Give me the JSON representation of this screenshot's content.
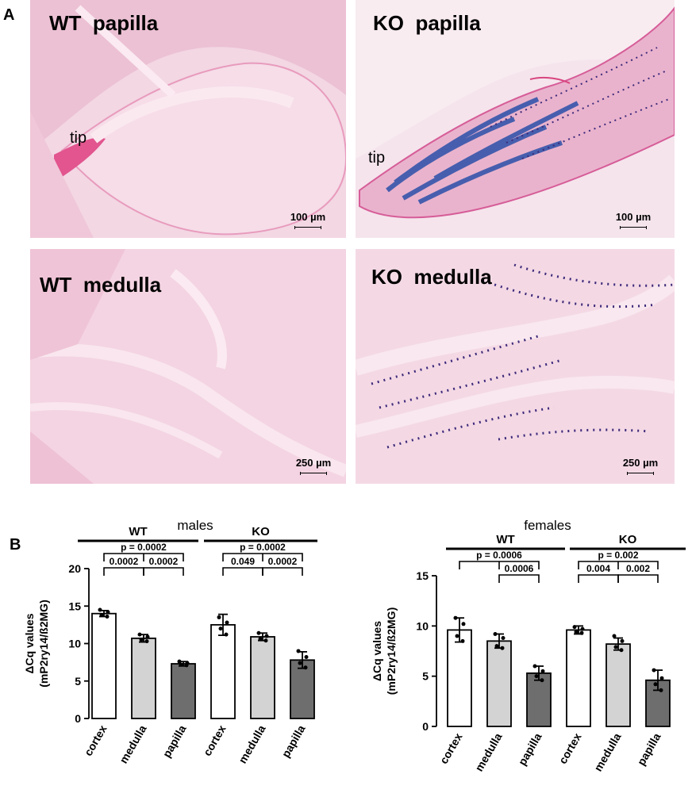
{
  "panel_a_label": "A",
  "panel_b_label": "B",
  "micrographs": [
    {
      "title": "WT  papilla",
      "tip": "tip",
      "scale": "100 µm",
      "stain": "none"
    },
    {
      "title": "KO  papilla",
      "tip": "tip",
      "scale": "100 µm",
      "stain": "blue"
    },
    {
      "title": "WT  medulla",
      "tip": "",
      "scale": "250 µm",
      "stain": "none"
    },
    {
      "title": "KO  medulla",
      "tip": "",
      "scale": "250 µm",
      "stain": "dots"
    }
  ],
  "colors": {
    "tissue": "#f5c6d8",
    "tissue_dark": "#e86fa3",
    "xgal_blue": "#2a4fa8",
    "dots": "#3d2a7a",
    "bar_cortex": "#ffffff",
    "bar_medulla": "#d3d3d3",
    "bar_papilla": "#6e6e6e"
  },
  "chart_data": [
    {
      "type": "bar",
      "title": "males",
      "ylabel": "ΔCq values\n(mP2ry14/ß2MG)",
      "ylim": [
        0,
        20
      ],
      "yticks": [
        0,
        5,
        10,
        15,
        20
      ],
      "groups": [
        {
          "name": "WT",
          "categories": [
            "cortex",
            "medulla",
            "papilla"
          ]
        },
        {
          "name": "KO",
          "categories": [
            "cortex",
            "medulla",
            "papilla"
          ]
        }
      ],
      "categories": [
        "cortex",
        "medulla",
        "papilla",
        "cortex",
        "medulla",
        "papilla"
      ],
      "values": [
        14.0,
        10.7,
        7.3,
        12.5,
        10.9,
        7.8
      ],
      "errors": [
        0.4,
        0.5,
        0.3,
        1.4,
        0.5,
        1.1
      ],
      "points": [
        [
          14.5,
          14.2,
          13.8,
          13.6
        ],
        [
          11.2,
          10.9,
          10.5,
          10.3
        ],
        [
          7.6,
          7.4,
          7.2,
          7.1
        ],
        [
          13.5,
          12.8,
          12.0,
          11.2
        ],
        [
          11.4,
          11.0,
          10.6,
          10.4
        ],
        [
          9.0,
          8.2,
          7.4,
          6.8
        ]
      ],
      "bar_colors": [
        "#ffffff",
        "#d3d3d3",
        "#6e6e6e",
        "#ffffff",
        "#d3d3d3",
        "#6e6e6e"
      ],
      "comparisons": [
        {
          "label": "p = 0.0002"
        },
        {
          "label": "0.0002"
        },
        {
          "label": "0.0002"
        },
        {
          "label": "p = 0.0002"
        },
        {
          "label": "0.049"
        },
        {
          "label": "0.0002"
        }
      ]
    },
    {
      "type": "bar",
      "title": "females",
      "ylabel": "ΔCq values\n(mP2ry14/ß2MG)",
      "ylim": [
        0,
        15
      ],
      "yticks": [
        0,
        5,
        10,
        15
      ],
      "groups": [
        {
          "name": "WT",
          "categories": [
            "cortex",
            "medulla",
            "papilla"
          ]
        },
        {
          "name": "KO",
          "categories": [
            "cortex",
            "medulla",
            "papilla"
          ]
        }
      ],
      "categories": [
        "cortex",
        "medulla",
        "papilla",
        "cortex",
        "medulla",
        "papilla"
      ],
      "values": [
        9.6,
        8.5,
        5.3,
        9.6,
        8.2,
        4.6
      ],
      "errors": [
        1.2,
        0.7,
        0.7,
        0.4,
        0.6,
        1.0
      ],
      "points": [
        [
          10.8,
          10.2,
          9.0,
          8.5
        ],
        [
          9.2,
          8.8,
          8.0,
          7.8
        ],
        [
          6.0,
          5.5,
          5.0,
          4.6
        ],
        [
          9.9,
          9.7,
          9.4,
          9.3
        ],
        [
          9.0,
          8.5,
          7.9,
          7.6
        ],
        [
          5.6,
          4.8,
          4.2,
          3.6
        ]
      ],
      "bar_colors": [
        "#ffffff",
        "#d3d3d3",
        "#6e6e6e",
        "#ffffff",
        "#d3d3d3",
        "#6e6e6e"
      ],
      "comparisons": [
        {
          "label": "p = 0.0006"
        },
        {
          "label": "0.0006"
        },
        {
          "label": "p = 0.002"
        },
        {
          "label": "0.004"
        },
        {
          "label": "0.002"
        }
      ]
    }
  ]
}
